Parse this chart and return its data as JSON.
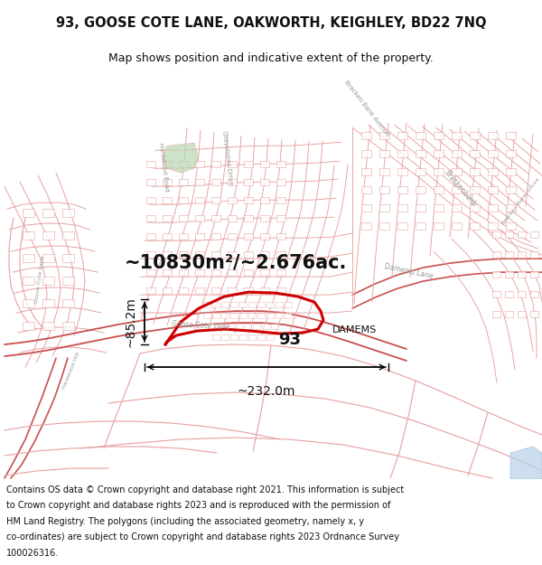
{
  "title_line1": "93, GOOSE COTE LANE, OAKWORTH, KEIGHLEY, BD22 7NQ",
  "title_line2": "Map shows position and indicative extent of the property.",
  "area_text": "~10830m²/~2.676ac.",
  "width_text": "~232.0m",
  "height_text": "~85.2m",
  "label_93": "93",
  "label_damems": "DAMEMS",
  "footer_text": "Contains OS data © Crown copyright and database right 2021. This information is subject to Crown copyright and database rights 2023 and is reproduced with the permission of HM Land Registry. The polygons (including the associated geometry, namely x, y co-ordinates) are subject to Crown copyright and database rights 2023 Ordnance Survey 100026316.",
  "map_bg": "#fdf8f8",
  "road_color_light": "#e8a0a0",
  "road_color_dark": "#c85050",
  "highlight_color": "#cc0000",
  "text_color": "#111111",
  "footer_bg": "#ffffff",
  "green_color": "#b8d8b0",
  "water_color": "#b8d0e8",
  "title_fontsize": 10.5,
  "subtitle_fontsize": 9,
  "area_fontsize": 15,
  "measurement_fontsize": 10,
  "label93_fontsize": 13,
  "damems_fontsize": 8,
  "footer_fontsize": 7
}
